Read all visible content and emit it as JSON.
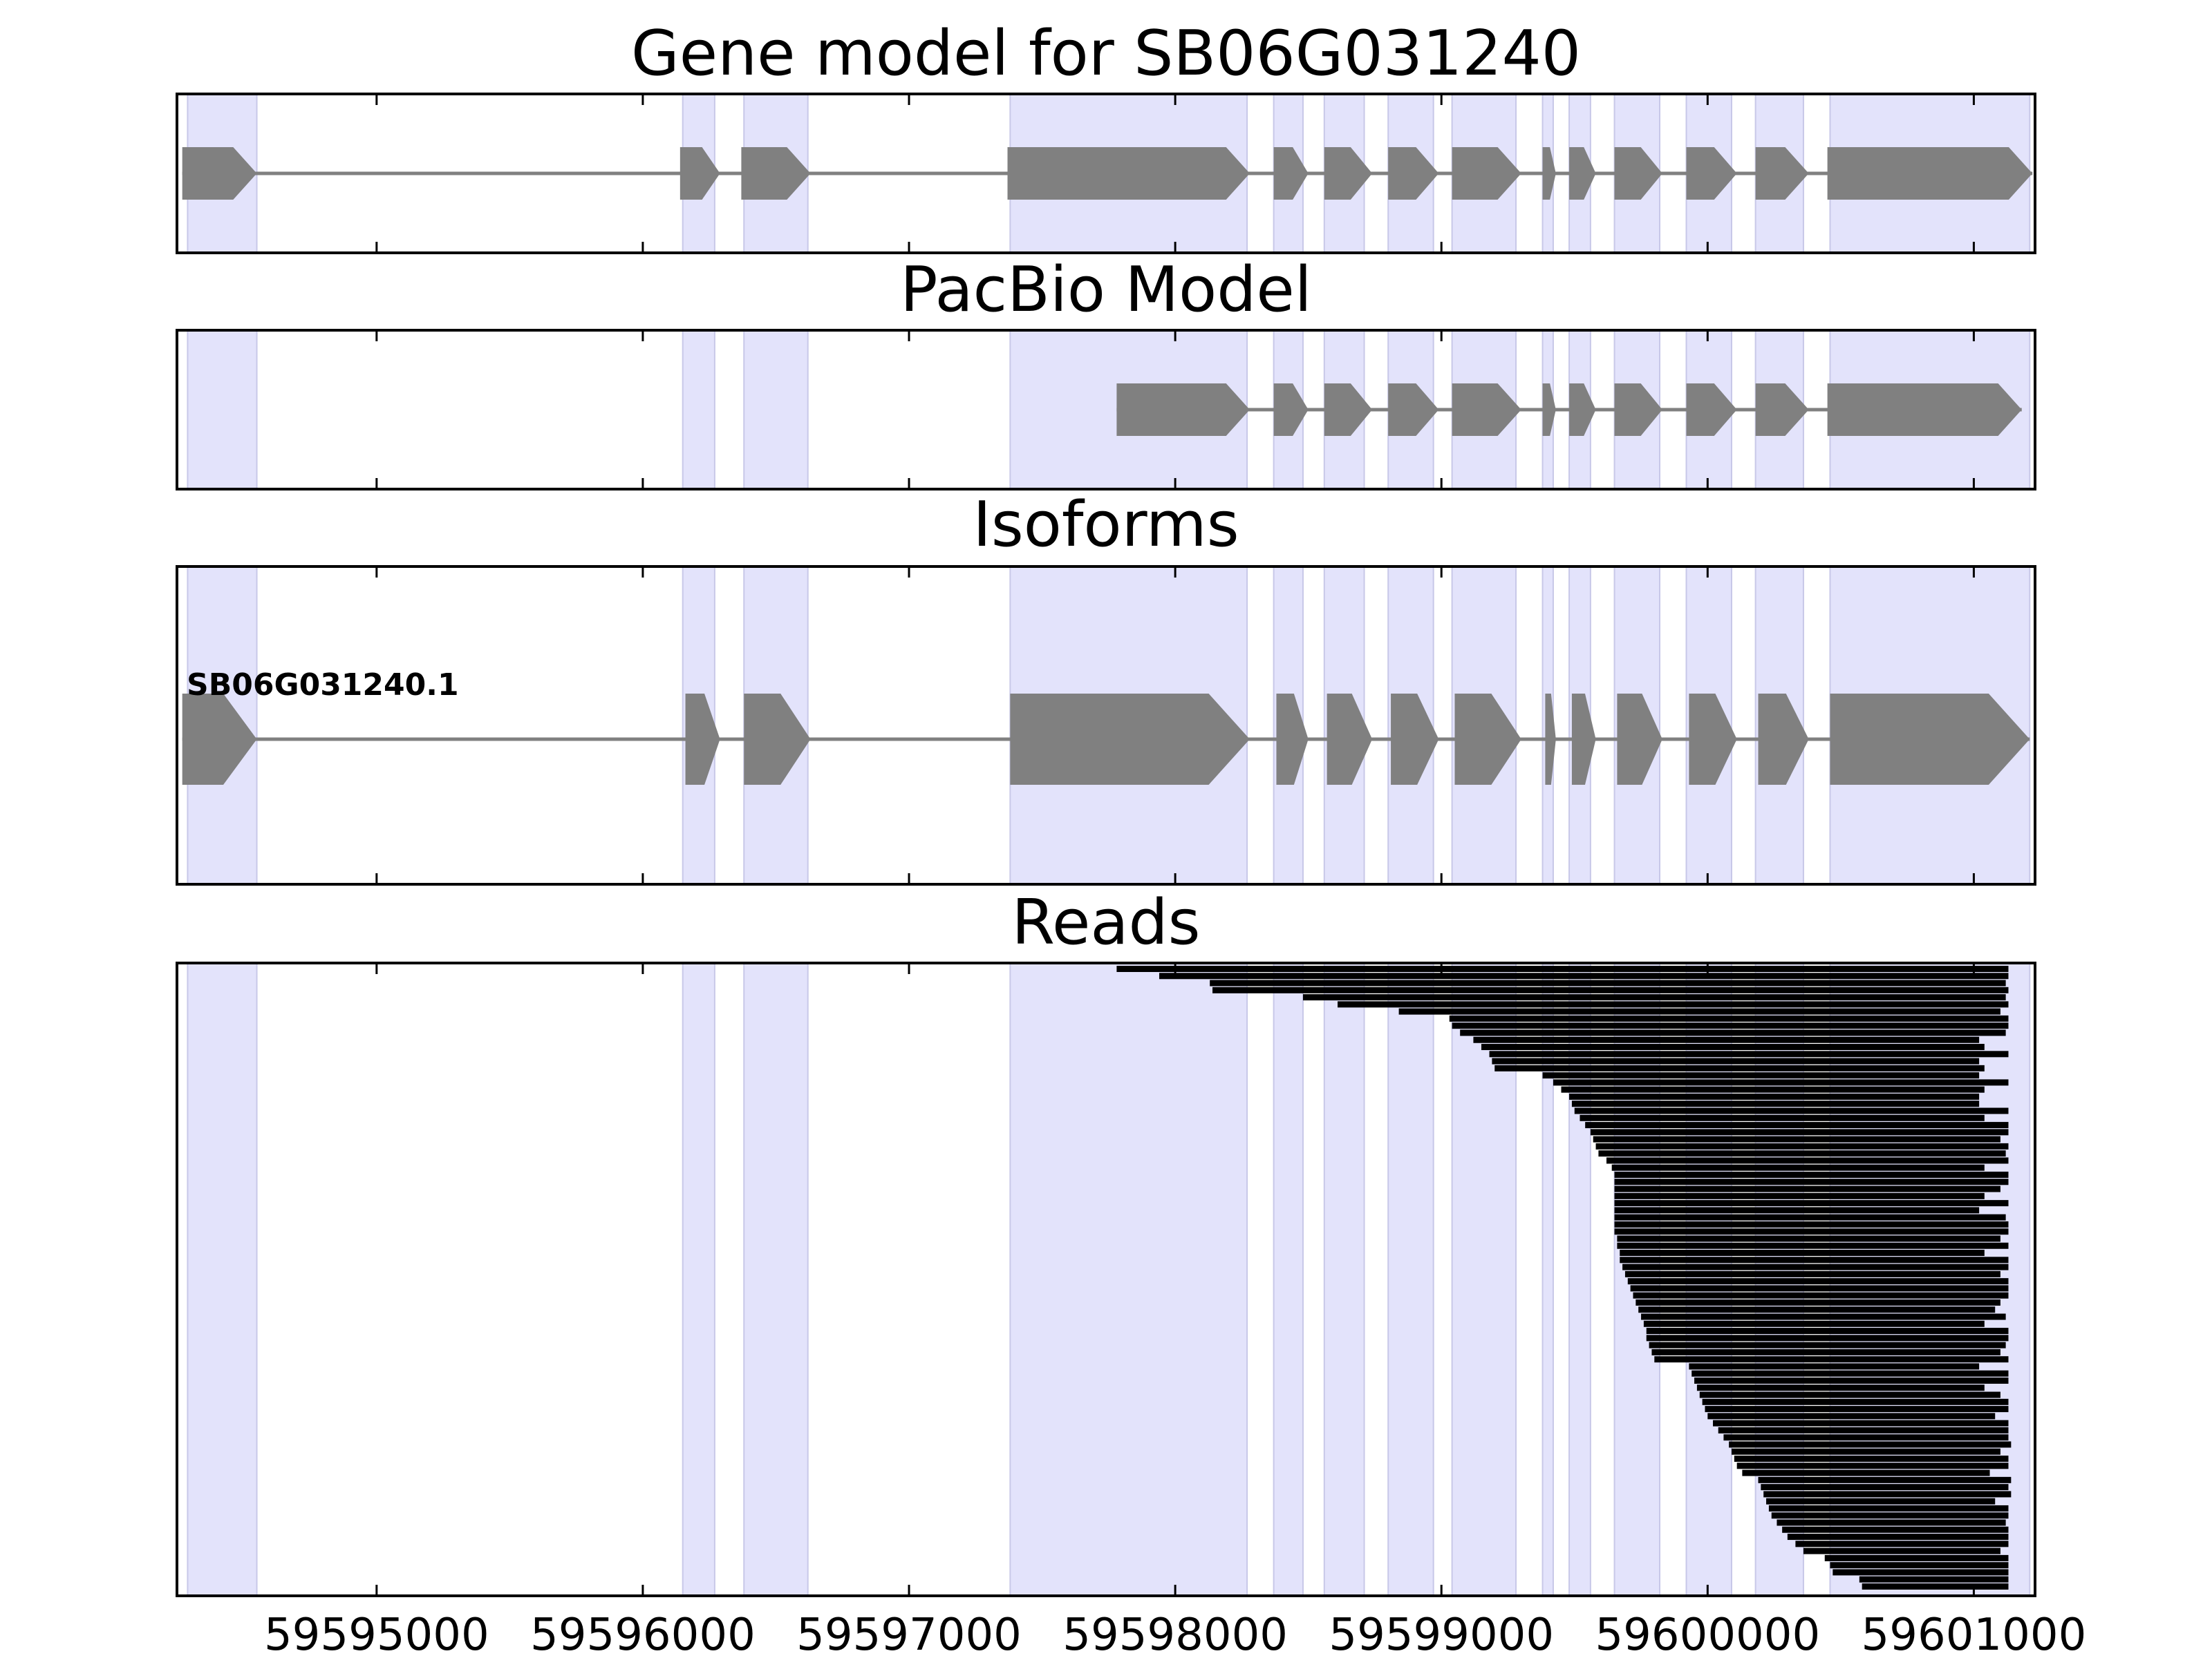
{
  "colors": {
    "exon_band": "#e3e3fb",
    "feature": "#808080",
    "read": "#000000",
    "axes": "#000000"
  },
  "panels": {
    "gene_model": {
      "title": "Gene model for SB06G031240"
    },
    "pacbio": {
      "title": "PacBio Model"
    },
    "isoforms": {
      "title": "Isoforms",
      "labels": [
        "SB06G031240.1"
      ]
    },
    "reads": {
      "title": "Reads"
    }
  },
  "chart_data": {
    "type": "gene-track",
    "xlim": [
      59594250,
      59601230
    ],
    "x_ticks": [
      59595000,
      59596000,
      59597000,
      59598000,
      59599000,
      59600000,
      59601000
    ],
    "x_tick_labels": [
      "59595000",
      "59596000",
      "59597000",
      "59598000",
      "59599000",
      "59600000",
      "59601000"
    ],
    "exon_bands": [
      [
        59594290,
        59594550
      ],
      [
        59596150,
        59596270
      ],
      [
        59596380,
        59596620
      ],
      [
        59597380,
        59598270
      ],
      [
        59598370,
        59598480
      ],
      [
        59598560,
        59598710
      ],
      [
        59598800,
        59598970
      ],
      [
        59599040,
        59599280
      ],
      [
        59599380,
        59599420
      ],
      [
        59599480,
        59599560
      ],
      [
        59599650,
        59599820
      ],
      [
        59599920,
        59600090
      ],
      [
        59600180,
        59600360
      ],
      [
        59600460,
        59601210
      ]
    ],
    "gene_model_exons": [
      [
        59594270,
        59594550
      ],
      [
        59596140,
        59596290
      ],
      [
        59596370,
        59596630
      ],
      [
        59597370,
        59598280
      ],
      [
        59598370,
        59598500
      ],
      [
        59598560,
        59598740
      ],
      [
        59598800,
        59598990
      ],
      [
        59599040,
        59599300
      ],
      [
        59599380,
        59599430
      ],
      [
        59599480,
        59599580
      ],
      [
        59599650,
        59599830
      ],
      [
        59599920,
        59600110
      ],
      [
        59600180,
        59600380
      ],
      [
        59600450,
        59601220
      ]
    ],
    "pacbio_exons": [
      [
        59597780,
        59598280
      ],
      [
        59598370,
        59598500
      ],
      [
        59598560,
        59598740
      ],
      [
        59598800,
        59598990
      ],
      [
        59599040,
        59599300
      ],
      [
        59599380,
        59599430
      ],
      [
        59599480,
        59599580
      ],
      [
        59599650,
        59599830
      ],
      [
        59599920,
        59600110
      ],
      [
        59600180,
        59600380
      ],
      [
        59600450,
        59601180
      ]
    ],
    "isoform_exons": [
      [
        59594270,
        59594550
      ],
      [
        59596160,
        59596290
      ],
      [
        59596380,
        59596630
      ],
      [
        59597380,
        59598280
      ],
      [
        59598380,
        59598500
      ],
      [
        59598570,
        59598740
      ],
      [
        59598810,
        59598990
      ],
      [
        59599050,
        59599300
      ],
      [
        59599390,
        59599430
      ],
      [
        59599490,
        59599580
      ],
      [
        59599660,
        59599830
      ],
      [
        59599930,
        59600110
      ],
      [
        59600190,
        59600380
      ],
      [
        59600460,
        59601210
      ]
    ],
    "read_starts": [
      59597780,
      59597940,
      59598130,
      59598140,
      59598480,
      59598610,
      59598840,
      59599030,
      59599040,
      59599070,
      59599120,
      59599150,
      59599180,
      59599190,
      59599200,
      59599380,
      59599420,
      59599450,
      59599480,
      59599490,
      59599500,
      59599520,
      59599540,
      59599560,
      59599570,
      59599580,
      59599590,
      59599620,
      59599640,
      59599650,
      59599650,
      59599650,
      59599650,
      59599650,
      59599650,
      59599650,
      59599650,
      59599650,
      59599660,
      59599660,
      59599670,
      59599670,
      59599680,
      59599690,
      59599700,
      59599710,
      59599720,
      59599730,
      59599740,
      59599750,
      59599760,
      59599770,
      59599770,
      59599780,
      59599790,
      59599800,
      59599930,
      59599940,
      59599950,
      59599960,
      59599970,
      59599980,
      59599990,
      59600000,
      59600020,
      59600040,
      59600060,
      59600080,
      59600090,
      59600100,
      59600110,
      59600130,
      59600190,
      59600200,
      59600210,
      59600220,
      59600230,
      59600240,
      59600260,
      59600280,
      59600300,
      59600330,
      59600360,
      59600440,
      59600460,
      59600470,
      59600570,
      59600580
    ],
    "read_ends": [
      59601130,
      59601130,
      59601120,
      59601130,
      59601120,
      59601130,
      59601100,
      59601130,
      59601130,
      59601120,
      59601020,
      59601040,
      59601130,
      59601020,
      59601040,
      59601020,
      59601130,
      59601040,
      59601020,
      59601020,
      59601130,
      59601040,
      59601130,
      59601130,
      59601100,
      59601130,
      59601120,
      59601130,
      59601040,
      59601130,
      59601130,
      59601100,
      59601040,
      59601130,
      59601020,
      59601120,
      59601130,
      59601130,
      59601100,
      59601130,
      59601040,
      59601130,
      59601130,
      59601100,
      59601130,
      59601130,
      59601130,
      59601100,
      59601080,
      59601120,
      59601040,
      59601130,
      59601130,
      59601120,
      59601100,
      59601130,
      59601020,
      59601130,
      59601130,
      59601040,
      59601100,
      59601130,
      59601130,
      59601080,
      59601130,
      59601130,
      59601130,
      59601140,
      59601100,
      59601130,
      59601130,
      59601060,
      59601140,
      59601130,
      59601140,
      59601080,
      59601130,
      59601130,
      59601120,
      59601130,
      59601130,
      59601130,
      59601100,
      59601130,
      59601130,
      59601130,
      59601130,
      59601130
    ]
  }
}
